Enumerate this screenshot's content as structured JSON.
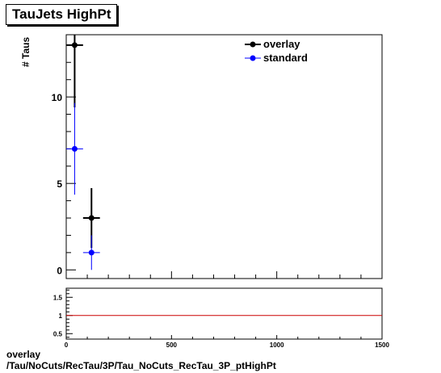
{
  "title": "TauJets HighPt",
  "footer": {
    "line1": "overlay",
    "line2": "/Tau/NoCuts/RecTau/3P/Tau_NoCuts_RecTau_3P_ptHighPt"
  },
  "colors": {
    "overlay": "#000000",
    "standard": "#0000ff",
    "ratio_line": "#cc0000"
  },
  "chart_data": [
    {
      "type": "scatter",
      "title": "TauJets HighPt",
      "ylabel": "# Taus",
      "xlim": [
        0,
        1500
      ],
      "ylim": [
        -0.5,
        13.6
      ],
      "yticks": [
        0,
        5,
        10
      ],
      "legend_position": "top-right",
      "series": [
        {
          "name": "overlay",
          "x": [
            40,
            120
          ],
          "y": [
            13,
            3
          ],
          "yerr": [
            3.6,
            1.73
          ],
          "xerr": [
            40,
            40
          ]
        },
        {
          "name": "standard",
          "x": [
            40,
            120
          ],
          "y": [
            7,
            1
          ],
          "yerr": [
            2.65,
            1.0
          ],
          "xerr": [
            40,
            40
          ]
        }
      ]
    },
    {
      "type": "line",
      "xlim": [
        0,
        1500
      ],
      "ylim": [
        0.35,
        1.75
      ],
      "xticks": [
        0,
        500,
        1000,
        1500
      ],
      "yticks": [
        0.5,
        1,
        1.5
      ],
      "reference_line": 1
    }
  ]
}
